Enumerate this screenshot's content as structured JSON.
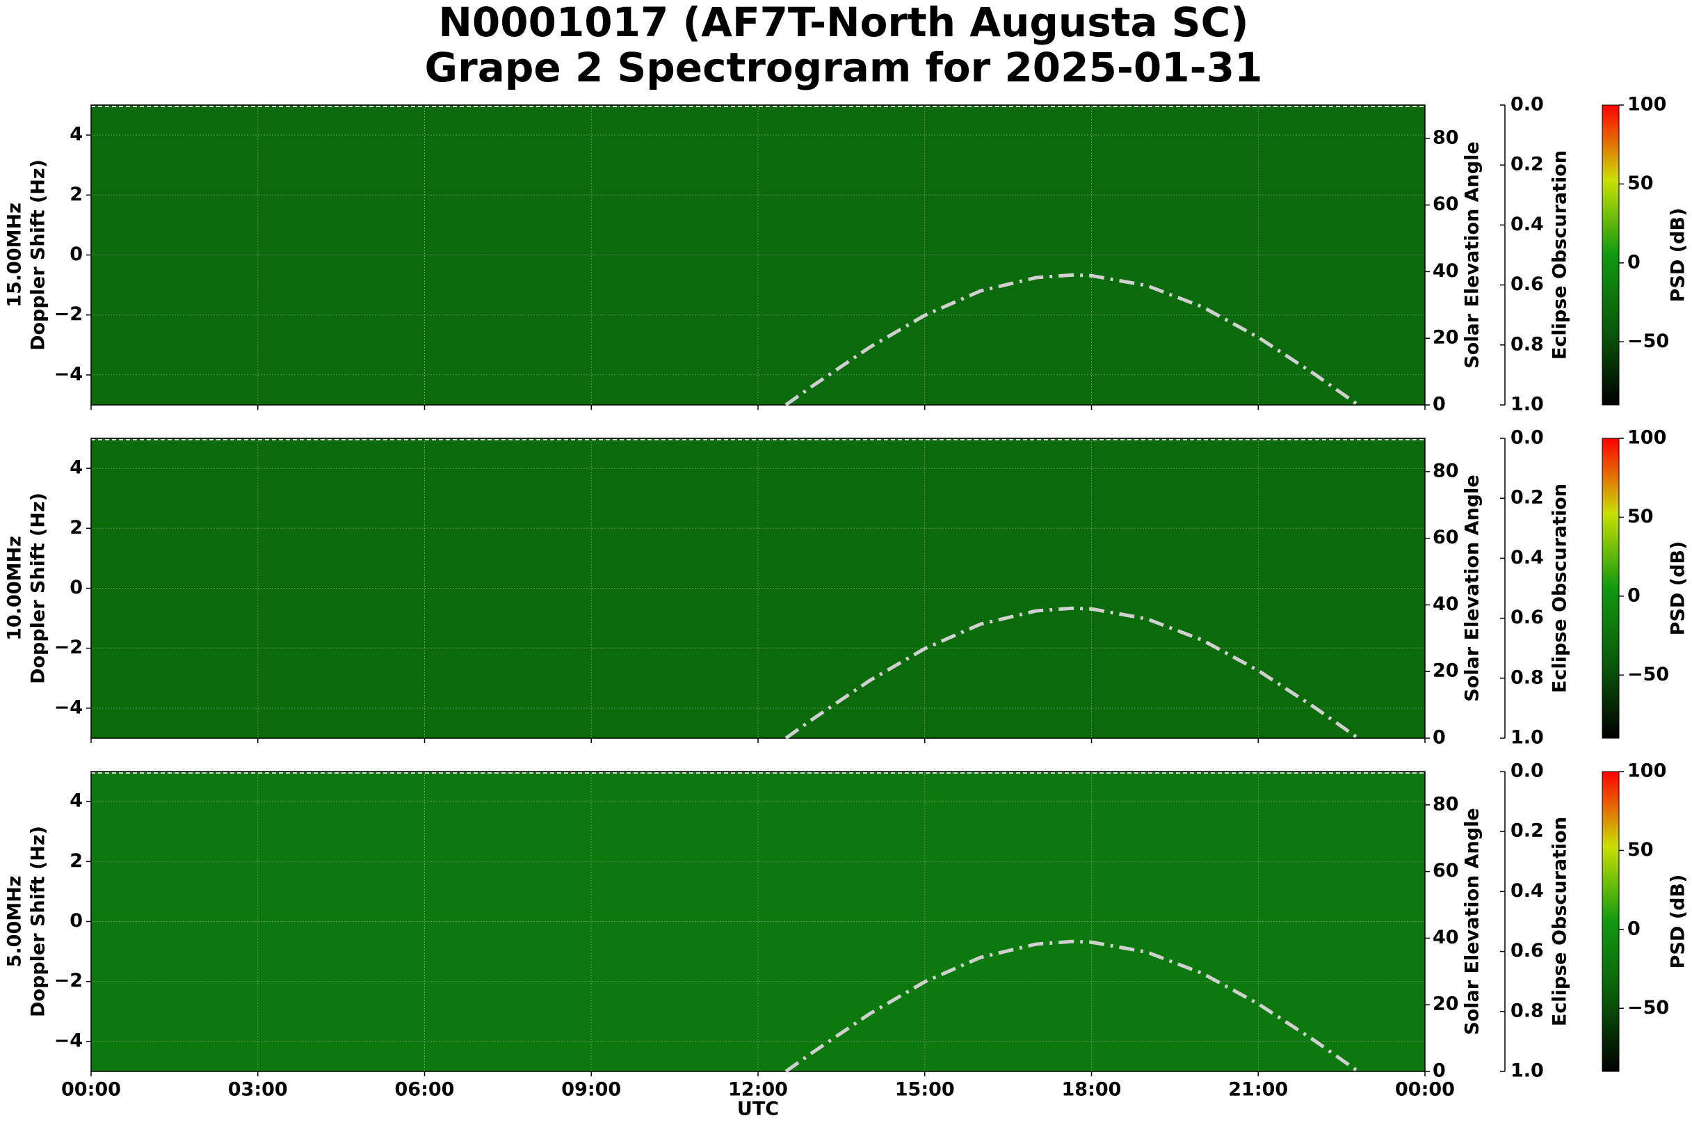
{
  "chart_data": {
    "type": "spectrogram",
    "title": [
      "N0001017 (AF7T-North Augusta SC)",
      "Grape 2 Spectrogram for 2025-01-31"
    ],
    "xlabel": "UTC",
    "xlim": [
      0,
      24
    ],
    "xticks": [
      {
        "value": 0,
        "label": "00:00"
      },
      {
        "value": 3,
        "label": "03:00"
      },
      {
        "value": 6,
        "label": "06:00"
      },
      {
        "value": 9,
        "label": "09:00"
      },
      {
        "value": 12,
        "label": "12:00"
      },
      {
        "value": 15,
        "label": "15:00"
      },
      {
        "value": 18,
        "label": "18:00"
      },
      {
        "value": 21,
        "label": "21:00"
      },
      {
        "value": 24,
        "label": "00:00"
      }
    ],
    "panels": [
      {
        "ylabel": [
          "15.00MHz",
          "Doppler Shift (Hz)"
        ],
        "background": "#0b6a0b"
      },
      {
        "ylabel": [
          "10.00MHz",
          "Doppler Shift (Hz)"
        ],
        "background": "#0b6b0b"
      },
      {
        "ylabel": [
          "5.00MHz",
          "Doppler Shift (Hz)"
        ],
        "background": "#0d780d"
      }
    ],
    "ylim": [
      -5,
      5
    ],
    "yticks": [
      {
        "value": -4,
        "label": "−4"
      },
      {
        "value": -2,
        "label": "−2"
      },
      0,
      2,
      4
    ],
    "y2label": "Solar Elevation Angle",
    "y2lim": [
      0,
      90
    ],
    "y2ticks": [
      0,
      20,
      40,
      60,
      80
    ],
    "y3label": "Eclipse Obscuration",
    "y3lim": [
      0,
      1
    ],
    "y3_inverted": true,
    "y3ticks": [
      {
        "value": 0,
        "label": "0.0"
      },
      {
        "value": 0.2,
        "label": "0.2"
      },
      {
        "value": 0.4,
        "label": "0.4"
      },
      {
        "value": 0.6,
        "label": "0.6"
      },
      {
        "value": 0.8,
        "label": "0.8"
      },
      {
        "value": 1,
        "label": "1.0"
      }
    ],
    "colorbar": {
      "label": "PSD (dB)",
      "lim": [
        -90,
        100
      ],
      "ticks": [
        {
          "value": -50,
          "label": "−50"
        },
        0,
        50,
        100
      ],
      "colors": [
        "#000000",
        "#0a5a0a",
        "#119911",
        "#c8e000",
        "#ff0000"
      ]
    },
    "grid": true,
    "series": [
      {
        "axis": "y2",
        "color": "#d0d0d0",
        "linestyle": "dashdot",
        "x": [
          12.5,
          13,
          14,
          15,
          16,
          17,
          17.65,
          18,
          19,
          20,
          21,
          22,
          22.8
        ],
        "values": [
          0,
          5.9,
          17.2,
          26.9,
          34.2,
          38.2,
          39,
          38.8,
          35.8,
          29.4,
          20.3,
          9.4,
          0
        ]
      }
    ]
  }
}
